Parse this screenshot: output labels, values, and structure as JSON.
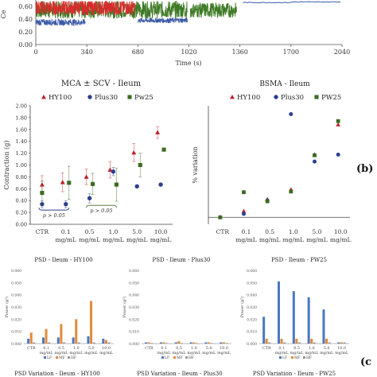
{
  "panel_labels": {
    "b": "(b)",
    "c": "(c"
  },
  "colors": {
    "HY100": "#c0202a",
    "Plus30": "#2d3f8f",
    "Pw25": "#3d6b22",
    "LF": "#4a78c2",
    "MF": "#e58a3b",
    "HF": "#9a9a9a",
    "trace_red": "#d92b2b",
    "trace_green": "#3f7a26",
    "trace_blue": "#3b5aa8"
  },
  "chart_data": [
    {
      "id": "time-trace",
      "type": "line",
      "xlabel": "Time (s)",
      "ylabel": "Ce",
      "xticks": [
        0,
        340,
        680,
        1020,
        1360,
        1700,
        2040
      ],
      "yticks": [
        "0.60",
        "0.40",
        "0.20",
        "0.00"
      ],
      "ylim": [
        0,
        0.7
      ],
      "xlim": [
        0,
        2040
      ]
    },
    {
      "id": "mca",
      "type": "scatter",
      "title": "MCA ± SCV - Ileum",
      "ylabel": "Contraction (g)",
      "ylim": [
        0,
        2
      ],
      "yticks": [
        "0.00",
        "0.20",
        "0.40",
        "0.60",
        "0.80",
        "1.00",
        "1.20",
        "1.40",
        "1.60",
        "1.80",
        "2.00"
      ],
      "categories": [
        [
          "CTR"
        ],
        [
          "0.1",
          "mg/mL"
        ],
        [
          "0.5",
          "mg/mL"
        ],
        [
          "1.0",
          "mg/mL"
        ],
        [
          "5.0",
          "mg/mL"
        ],
        [
          "10.0",
          "mg/mL"
        ]
      ],
      "series": [
        {
          "name": "HY100",
          "marker": "triangle",
          "values": [
            0.67,
            0.71,
            0.8,
            0.92,
            1.21,
            1.55
          ],
          "err": [
            0.15,
            0.16,
            0.13,
            0.14,
            0.15,
            0.1
          ]
        },
        {
          "name": "Plus30",
          "marker": "circle",
          "values": [
            0.34,
            0.34,
            0.44,
            0.89,
            0.64,
            0.67
          ],
          "err": [
            0.06,
            0.06,
            0.08,
            0.07,
            0,
            0
          ]
        },
        {
          "name": "Pw25",
          "marker": "square",
          "values": [
            0.53,
            0.7,
            0.68,
            0.67,
            1.0,
            1.26
          ],
          "err": [
            0.2,
            0.28,
            0.18,
            0.28,
            0.2,
            0
          ]
        }
      ],
      "annotations": [
        "p > 0.05",
        "p > 0.05"
      ]
    },
    {
      "id": "bsma",
      "type": "scatter",
      "title": "BSMA - Ileum",
      "ylabel": "% variation",
      "categories": [
        [
          "CTR"
        ],
        [
          "0.1",
          "mg/mL"
        ],
        [
          "0.5",
          "mg/mL"
        ],
        [
          "1.0",
          "mg/mL"
        ],
        [
          "5.0",
          "mg/mL"
        ],
        [
          "10.0",
          "mg/mL"
        ]
      ],
      "ylim": [
        -10,
        160
      ],
      "series": [
        {
          "name": "HY100",
          "marker": "triangle",
          "values": [
            0,
            9,
            26,
            40,
            90,
            133
          ]
        },
        {
          "name": "Plus30",
          "marker": "circle",
          "values": [
            0,
            5,
            24,
            148,
            80,
            90
          ]
        },
        {
          "name": "PW25",
          "marker": "square",
          "values": [
            0,
            36,
            23,
            37,
            89,
            138
          ]
        }
      ]
    },
    {
      "id": "psd-hy100",
      "type": "bar",
      "title": "PSD - Ileum - HY100",
      "ylabel": "Power (g²)",
      "ylim": [
        0,
        0.06
      ],
      "yticks": [
        "0.060",
        "0.050",
        "0.040",
        "0.030",
        "0.020",
        "0.010",
        "0.000"
      ],
      "categories": [
        "CTR",
        "0.1 mg/mL",
        "0.5 mg/mL",
        "1.0 mg/mL",
        "5.0 mg/mL",
        "10.0 mg/mL"
      ],
      "legend": [
        "LF",
        "MF",
        "HF"
      ],
      "series": [
        {
          "name": "LF",
          "values": [
            0.004,
            0.005,
            0.005,
            0.005,
            0.006,
            0.004
          ]
        },
        {
          "name": "MF",
          "values": [
            0.009,
            0.012,
            0.016,
            0.02,
            0.035,
            0.003
          ]
        },
        {
          "name": "HF",
          "values": [
            0.001,
            0.001,
            0.001,
            0.001,
            0.001,
            0.001
          ]
        }
      ]
    },
    {
      "id": "psd-plus30",
      "type": "bar",
      "title": "PSD - Ileum - Plus30",
      "ylabel": "Power (g²)",
      "ylim": [
        0,
        0.06
      ],
      "yticks": [
        "0.060",
        "0.050",
        "0.040",
        "0.030",
        "0.020",
        "0.010",
        "0.000"
      ],
      "categories": [
        "CTR",
        "0.1 mg/mL",
        "0.5 mg/mL",
        "1.0 mg/mL",
        "5.0 mg/mL",
        "10.0 mg/mL"
      ],
      "legend": [
        "LF",
        "MF",
        "HF"
      ],
      "series": [
        {
          "name": "LF",
          "values": [
            0.001,
            0.001,
            0.001,
            0.001,
            0.001,
            0.001
          ]
        },
        {
          "name": "MF",
          "values": [
            0.001,
            0.001,
            0.002,
            0.001,
            0.001,
            0.001
          ]
        },
        {
          "name": "HF",
          "values": [
            0.0005,
            0.0005,
            0.0005,
            0.0005,
            0.0005,
            0.0005
          ]
        }
      ]
    },
    {
      "id": "psd-pw25",
      "type": "bar",
      "title": "PSD - Ileum - PW25",
      "ylabel": "Power (g²)",
      "ylim": [
        0,
        0.06
      ],
      "yticks": [
        "0.060",
        "0.050",
        "0.040",
        "0.030",
        "0.020",
        "0.010",
        "0.000"
      ],
      "categories": [
        "CTR",
        "0.1 mg/mL",
        "0.5 mg/mL",
        "1.0 mg/mL",
        "5.0 mg/mL",
        "10.0 mg/mL"
      ],
      "legend": [
        "LF",
        "MF",
        "HF"
      ],
      "series": [
        {
          "name": "LF",
          "values": [
            0.022,
            0.051,
            0.043,
            0.038,
            0.028,
            0.001
          ]
        },
        {
          "name": "MF",
          "values": [
            0.004,
            0.004,
            0.004,
            0.004,
            0.004,
            0.001
          ]
        },
        {
          "name": "HF",
          "values": [
            0.001,
            0.001,
            0.001,
            0.001,
            0.001,
            0.001
          ]
        }
      ]
    }
  ],
  "bottom_titles": [
    "PSD Variation - Ileum - HY100",
    "PSD Variation - Ileum - Plus30",
    "PSD Variation - Ileum - PW25"
  ]
}
